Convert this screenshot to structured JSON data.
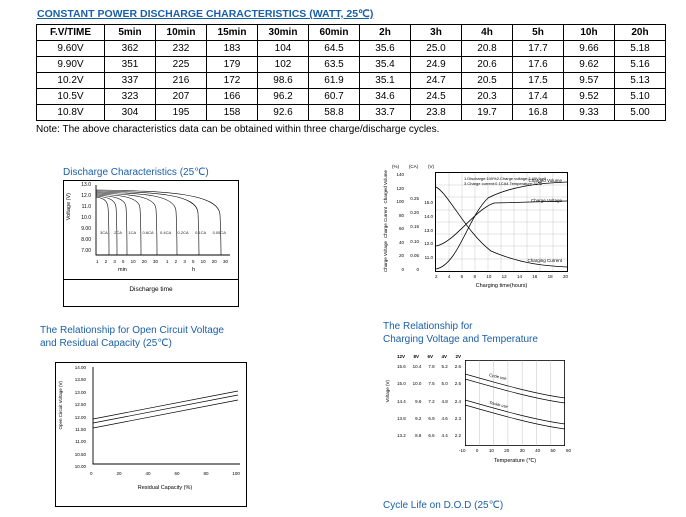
{
  "page": {
    "title": "CONSTANT POWER DISCHARGE CHARACTERISTICS (WATT, 25℃)",
    "note": "Note: The above characteristics data can be obtained within three charge/discharge cycles."
  },
  "table": {
    "headers": [
      "F.V/TIME",
      "5min",
      "10min",
      "15min",
      "30min",
      "60min",
      "2h",
      "3h",
      "4h",
      "5h",
      "10h",
      "20h"
    ],
    "rows": [
      [
        "9.60V",
        "362",
        "232",
        "183",
        "104",
        "64.5",
        "35.6",
        "25.0",
        "20.8",
        "17.7",
        "9.66",
        "5.18"
      ],
      [
        "9.90V",
        "351",
        "225",
        "179",
        "102",
        "63.5",
        "35.4",
        "24.9",
        "20.6",
        "17.6",
        "9.62",
        "5.16"
      ],
      [
        "10.2V",
        "337",
        "216",
        "172",
        "98.6",
        "61.9",
        "35.1",
        "24.7",
        "20.5",
        "17.5",
        "9.57",
        "5.13"
      ],
      [
        "10.5V",
        "323",
        "207",
        "166",
        "96.2",
        "60.7",
        "34.6",
        "24.5",
        "20.3",
        "17.4",
        "9.52",
        "5.10"
      ],
      [
        "10.8V",
        "304",
        "195",
        "158",
        "92.6",
        "58.8",
        "33.7",
        "23.8",
        "19.7",
        "16.8",
        "9.33",
        "5.00"
      ]
    ]
  },
  "charts": {
    "discharge": {
      "title": "Discharge Characteristics (25℃)",
      "ylabel": "Voltage (V)",
      "yticks": [
        "13.0",
        "12.0",
        "11.0",
        "10.0",
        "9.00",
        "8.00",
        "7.00"
      ],
      "curve_labels": [
        "3CA",
        "2CA",
        "1CA",
        "0.6CA",
        "0.4CA",
        "0.2CA",
        "0.1CA",
        "0.05CA"
      ],
      "xticks_min": [
        "1",
        "2",
        "3",
        "5",
        "10",
        "20",
        "30"
      ],
      "xticks_h": [
        "1",
        "2",
        "3",
        "5",
        "10",
        "20",
        "30"
      ],
      "x_unit_min": "min",
      "x_unit_h": "h",
      "xlabel": "Discharge time"
    },
    "charge": {
      "axis_groups": [
        {
          "name": "Charged Volume",
          "unit": "(%)",
          "ticks": [
            "140",
            "120",
            "100",
            "80",
            "60",
            "40",
            "20",
            "0"
          ]
        },
        {
          "name": "Charge Current",
          "unit": "(CA)",
          "ticks": [
            "0.25",
            "0.20",
            "0.15",
            "0.10",
            "0.05",
            "0"
          ]
        },
        {
          "name": "Charge Voltage",
          "unit": "(V)",
          "ticks": [
            "15.0",
            "14.0",
            "13.0",
            "12.0",
            "11.0"
          ]
        }
      ],
      "legend": [
        "1.Discharge:100%",
        "2.Charge voltage:2.40V/cell",
        "3.Charge current:0.1CA",
        "4.Temperature:25℃"
      ],
      "curve_labels": {
        "volume": "Charged Volume",
        "voltage": "Charge Voltage",
        "current": "Charging Current"
      },
      "xticks": [
        "2",
        "4",
        "6",
        "8",
        "10",
        "12",
        "14",
        "16",
        "18",
        "20"
      ],
      "xlabel": "Charging time(hours)"
    },
    "ocv": {
      "title_line1": "The Relationship for Open Circuit Voltage",
      "title_line2": "and Residual Capacity (25℃)",
      "ylabel": "Open Circuit Voltage (V)",
      "yticks": [
        "14.00",
        "13.50",
        "13.00",
        "12.50",
        "12.00",
        "11.50",
        "11.00",
        "10.50",
        "10.00"
      ],
      "xticks": [
        "0",
        "20",
        "40",
        "60",
        "80",
        "100"
      ],
      "xlabel": "Residual Capacity (%)"
    },
    "charging_temp": {
      "title_line1": "The Relationship for",
      "title_line2": "Charging Voltage and Temperature",
      "ylabel": "Voltage (V)",
      "col_headers": [
        "12V",
        "8V",
        "6V",
        "4V",
        "2V"
      ],
      "col_ticks": [
        [
          "15.6",
          "15.0",
          "14.4",
          "13.8",
          "13.2"
        ],
        [
          "10.4",
          "10.0",
          "9.6",
          "9.2",
          "8.8"
        ],
        [
          "7.8",
          "7.5",
          "7.2",
          "6.9",
          "6.6"
        ],
        [
          "5.2",
          "5.0",
          "4.8",
          "4.6",
          "4.4"
        ],
        [
          "2.6",
          "2.5",
          "2.4",
          "2.3",
          "2.2"
        ]
      ],
      "band_labels": {
        "upper": "Cycle use",
        "lower": "Trickle use"
      },
      "xticks": [
        "-10",
        "0",
        "10",
        "20",
        "30",
        "40",
        "50",
        "60"
      ],
      "xlabel": "Temperature (℃)"
    },
    "cycle_life": {
      "title": "Cycle Life on D.O.D (25℃)"
    }
  }
}
